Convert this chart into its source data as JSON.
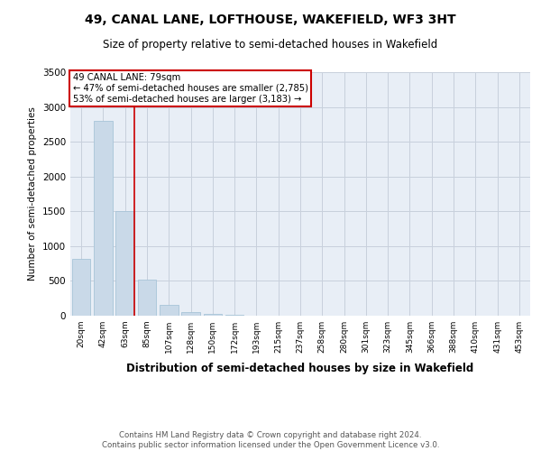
{
  "title": "49, CANAL LANE, LOFTHOUSE, WAKEFIELD, WF3 3HT",
  "subtitle": "Size of property relative to semi-detached houses in Wakefield",
  "xlabel": "Distribution of semi-detached houses by size in Wakefield",
  "ylabel": "Number of semi-detached properties",
  "property_label": "49 CANAL LANE: 79sqm",
  "pct_smaller": 47,
  "count_smaller": "2,785",
  "pct_larger": 53,
  "count_larger": "3,183",
  "categories": [
    "20sqm",
    "42sqm",
    "63sqm",
    "85sqm",
    "107sqm",
    "128sqm",
    "150sqm",
    "172sqm",
    "193sqm",
    "215sqm",
    "237sqm",
    "258sqm",
    "280sqm",
    "301sqm",
    "323sqm",
    "345sqm",
    "366sqm",
    "388sqm",
    "410sqm",
    "431sqm",
    "453sqm"
  ],
  "values": [
    820,
    2800,
    1500,
    520,
    150,
    50,
    30,
    10,
    5,
    2,
    1,
    1,
    0,
    0,
    0,
    0,
    0,
    0,
    0,
    0,
    0
  ],
  "bar_color": "#c9d9e8",
  "bar_edgecolor": "#a8c4d8",
  "vline_color": "#cc0000",
  "vline_x": 2.42,
  "annotation_box_edgecolor": "#cc0000",
  "ylim": [
    0,
    3500
  ],
  "yticks": [
    0,
    500,
    1000,
    1500,
    2000,
    2500,
    3000,
    3500
  ],
  "grid_color": "#c8d0dc",
  "bg_color": "#e8eef6",
  "footer": "Contains HM Land Registry data © Crown copyright and database right 2024.\nContains public sector information licensed under the Open Government Licence v3.0."
}
